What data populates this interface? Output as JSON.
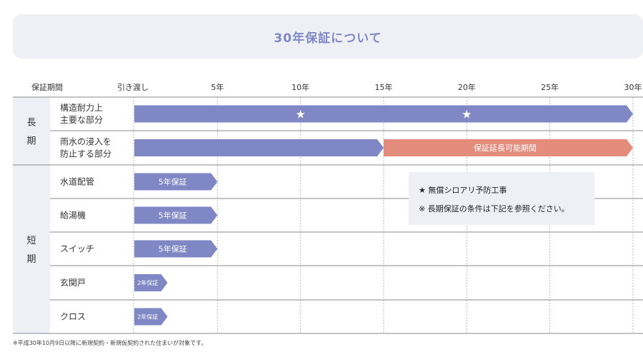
{
  "title": "30年保証について",
  "footnote": "※平成30年10月9日以降に新規契約・新規仮契約された住まいが対象です。",
  "colors": {
    "bar": "#7f88c4",
    "extension": "#e38c7c",
    "group_bg": "#eef0f6",
    "note_bg": "#eef0f6"
  },
  "chart_data": {
    "type": "bar",
    "orientation": "horizontal",
    "header_label": "保証期間",
    "x_ticks": [
      {
        "value": 0,
        "label": "引き渡し"
      },
      {
        "value": 5,
        "label": "5年"
      },
      {
        "value": 10,
        "label": "10年"
      },
      {
        "value": 15,
        "label": "15年"
      },
      {
        "value": 20,
        "label": "20年"
      },
      {
        "value": 25,
        "label": "25年"
      },
      {
        "value": 30,
        "label": "30年"
      }
    ],
    "xlim": [
      0,
      30
    ],
    "groups": [
      {
        "label": "長期",
        "rows": [
          0,
          1
        ]
      },
      {
        "label": "短期",
        "rows": [
          2,
          3,
          4,
          5,
          6
        ]
      }
    ],
    "rows": [
      {
        "label": [
          "構造耐力上",
          "主要な部分"
        ],
        "segments": [
          {
            "start": 0,
            "end": 30,
            "kind": "bar",
            "text": ""
          }
        ],
        "stars": [
          10,
          20
        ]
      },
      {
        "label": [
          "雨水の浸入を",
          "防止する部分"
        ],
        "segments": [
          {
            "start": 0,
            "end": 15,
            "kind": "bar",
            "text": ""
          },
          {
            "start": 15,
            "end": 30,
            "kind": "extension",
            "text": "保証延長可能期間"
          }
        ],
        "stars": []
      },
      {
        "label": [
          "水道配管"
        ],
        "segments": [
          {
            "start": 0,
            "end": 5,
            "kind": "bar",
            "text": "5年保証"
          }
        ],
        "stars": []
      },
      {
        "label": [
          "給湯機"
        ],
        "segments": [
          {
            "start": 0,
            "end": 5,
            "kind": "bar",
            "text": "5年保証"
          }
        ],
        "stars": []
      },
      {
        "label": [
          "スイッチ"
        ],
        "segments": [
          {
            "start": 0,
            "end": 5,
            "kind": "bar",
            "text": "5年保証"
          }
        ],
        "stars": []
      },
      {
        "label": [
          "玄関戸"
        ],
        "segments": [
          {
            "start": 0,
            "end": 2,
            "kind": "bar",
            "text": "2年保証"
          }
        ],
        "stars": []
      },
      {
        "label": [
          "クロス"
        ],
        "segments": [
          {
            "start": 0,
            "end": 2,
            "kind": "bar",
            "text": "2年保証"
          }
        ],
        "stars": []
      }
    ],
    "notes": [
      "★ 無償シロアリ予防工事",
      "※ 長期保証の条件は下記を参照ください。"
    ],
    "grid": true
  }
}
